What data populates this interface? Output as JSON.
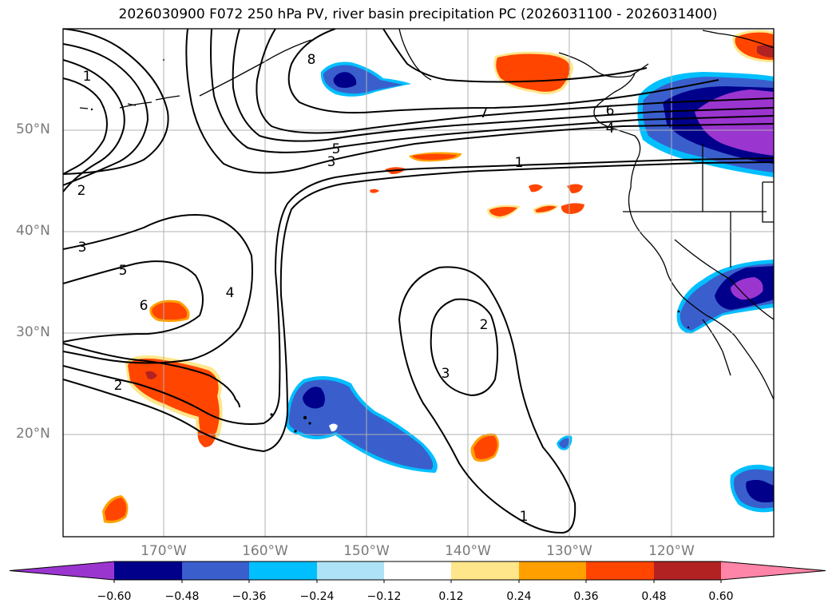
{
  "title": "2026030900 F072 250 hPa PV, river basin precipitation PC (2026031100 - 2026031400)",
  "lat_labels": [
    "50°N",
    "40°N",
    "30°N",
    "20°N"
  ],
  "lon_labels": [
    "170°W",
    "160°W",
    "150°W",
    "140°W",
    "130°W",
    "120°W"
  ],
  "contour_labels": [
    "1",
    "2",
    "3",
    "5",
    "6",
    "4",
    "2",
    "1",
    "3",
    "5",
    "6",
    "7",
    "4",
    "2",
    "3",
    "1",
    "8"
  ],
  "colorbar": {
    "ticks": [
      "−0.60",
      "−0.48",
      "−0.36",
      "−0.24",
      "−0.12",
      "0.12",
      "0.24",
      "0.36",
      "0.48",
      "0.60"
    ],
    "colors": [
      "#9b35d0",
      "#00008b",
      "#3a5fcd",
      "#00bfff",
      "#aee3f7",
      "#ffffff",
      "#ffe68a",
      "#ffa000",
      "#ff4500",
      "#b22222",
      "#ff85a8"
    ]
  }
}
